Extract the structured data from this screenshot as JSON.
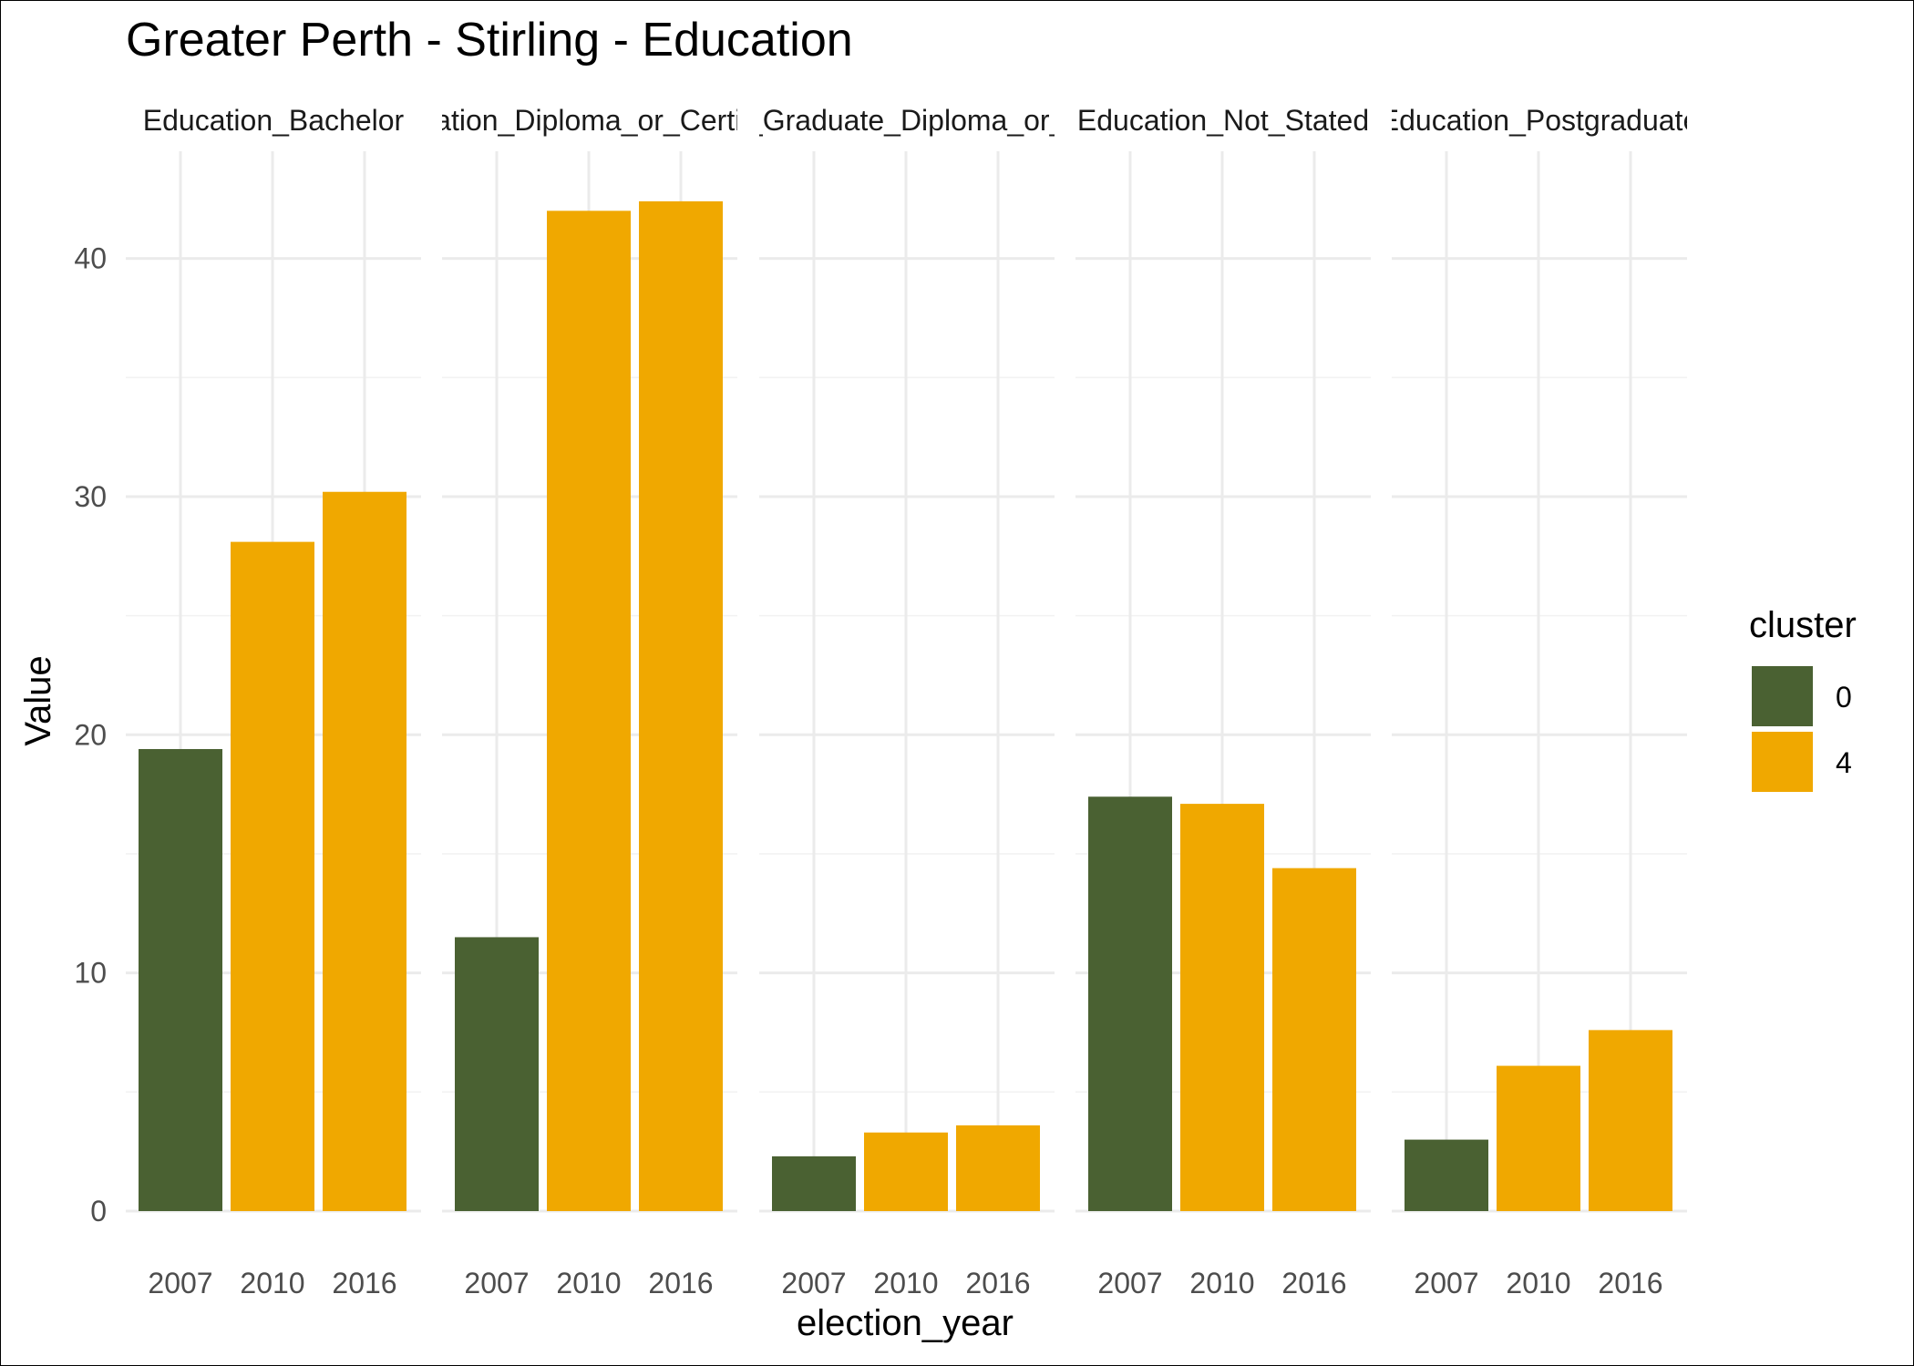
{
  "chart_data": {
    "type": "bar",
    "title": "Greater Perth - Stirling - Education",
    "xlabel": "election_year",
    "ylabel": "Value",
    "ylim": [
      0,
      44.5
    ],
    "y_ticks": [
      0,
      10,
      20,
      30,
      40
    ],
    "y_tick_labels": [
      "0",
      "10",
      "20",
      "30",
      "40"
    ],
    "grid": true,
    "categories": [
      "2007",
      "2010",
      "2016"
    ],
    "legend": {
      "title": "cluster",
      "placement": "right",
      "entries": [
        {
          "label": "0",
          "color": "#4a6132"
        },
        {
          "label": "4",
          "color": "#f0a800"
        }
      ]
    },
    "panels": [
      {
        "strip_label": "Education_Bachelor",
        "bars": [
          {
            "year": "2007",
            "value": 19.4,
            "cluster": "0"
          },
          {
            "year": "2010",
            "value": 28.1,
            "cluster": "4"
          },
          {
            "year": "2016",
            "value": 30.2,
            "cluster": "4"
          }
        ]
      },
      {
        "strip_label": "Education_Diploma_or_Certificate",
        "bars": [
          {
            "year": "2007",
            "value": 11.5,
            "cluster": "0"
          },
          {
            "year": "2010",
            "value": 42.0,
            "cluster": "4"
          },
          {
            "year": "2016",
            "value": 42.4,
            "cluster": "4"
          }
        ]
      },
      {
        "strip_label": "Education_Graduate_Diploma_or_Certificate",
        "bars": [
          {
            "year": "2007",
            "value": 2.3,
            "cluster": "0"
          },
          {
            "year": "2010",
            "value": 3.3,
            "cluster": "4"
          },
          {
            "year": "2016",
            "value": 3.6,
            "cluster": "4"
          }
        ]
      },
      {
        "strip_label": "Education_Not_Stated",
        "bars": [
          {
            "year": "2007",
            "value": 17.4,
            "cluster": "0"
          },
          {
            "year": "2010",
            "value": 17.1,
            "cluster": "4"
          },
          {
            "year": "2016",
            "value": 14.4,
            "cluster": "4"
          }
        ]
      },
      {
        "strip_label": "Education_Postgraduate",
        "bars": [
          {
            "year": "2007",
            "value": 3.0,
            "cluster": "0"
          },
          {
            "year": "2010",
            "value": 6.1,
            "cluster": "4"
          },
          {
            "year": "2016",
            "value": 7.6,
            "cluster": "4"
          }
        ]
      }
    ]
  }
}
